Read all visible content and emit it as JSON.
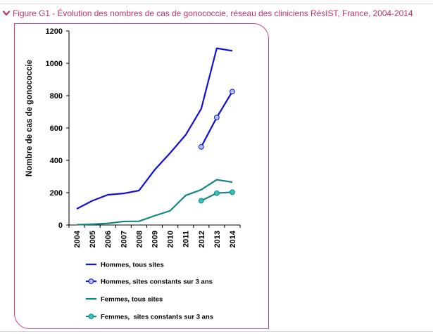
{
  "header": {
    "toggle_icon": "chevron-down-icon",
    "title": "Figure G1 - Évolution des nombres de cas de gonococcie, réseau des cliniciens RésIST, France, 2004-2014"
  },
  "colors": {
    "title": "#c0306a",
    "frame": "#c8457f",
    "hommes": "#1010d8",
    "femmes": "#13857f",
    "hommes_marker_fill": "#a9c3ef",
    "femmes_marker_fill": "#33c1c1"
  },
  "chart_data": {
    "type": "line",
    "title": "",
    "xlabel": "",
    "ylabel": "Nombre de cas de gonococcie",
    "x": [
      "2004",
      "2005",
      "2006",
      "2007",
      "2008",
      "2009",
      "2010",
      "2011",
      "2012",
      "2013",
      "2014"
    ],
    "ylim": [
      0,
      1200
    ],
    "yticks": [
      "0",
      "200",
      "400",
      "600",
      "800",
      "1000",
      "1200"
    ],
    "grid": false,
    "legend_position": "bottom",
    "series": [
      {
        "name": "Hommes, tous sites",
        "color": "#1010d8",
        "marker": false,
        "values": [
          100,
          150,
          187,
          195,
          213,
          340,
          445,
          557,
          718,
          1093,
          1077
        ]
      },
      {
        "name": "Hommes, sites constants sur 3 ans",
        "color": "#1010d8",
        "marker": true,
        "values": [
          null,
          null,
          null,
          null,
          null,
          null,
          null,
          null,
          483,
          665,
          825
        ]
      },
      {
        "name": "Femmes, tous sites",
        "color": "#13857f",
        "marker": false,
        "values": [
          2,
          5,
          10,
          22,
          23,
          57,
          88,
          183,
          218,
          280,
          265
        ]
      },
      {
        "name": "Femmes,  sites constants sur 3 ans",
        "color": "#13857f",
        "marker": true,
        "values": [
          null,
          null,
          null,
          null,
          null,
          null,
          null,
          null,
          150,
          197,
          203
        ]
      }
    ]
  }
}
